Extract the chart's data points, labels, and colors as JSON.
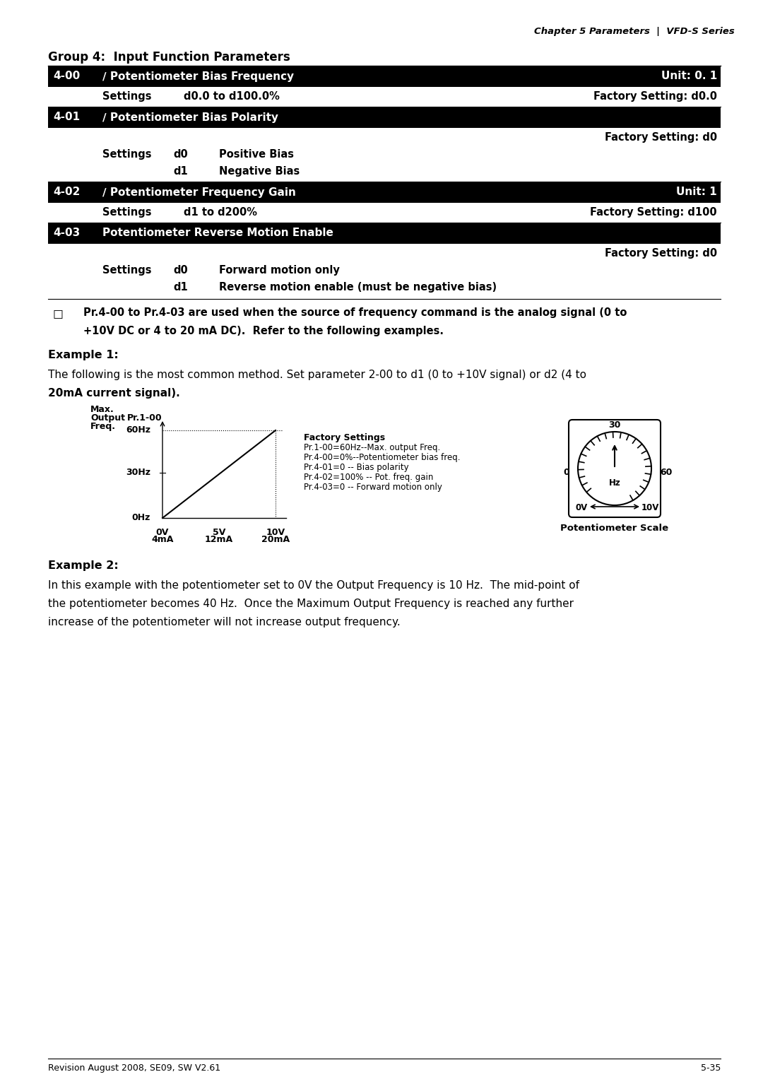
{
  "header_right": "Chapter 5 Parameters  |  VFD-S Series",
  "group_title": "Group 4:  Input Function Parameters",
  "params": [
    {
      "id": "4-00",
      "name": "∕ Potentiometer Bias Frequency",
      "unit": "Unit: 0. 1",
      "settings_label": "Settings",
      "settings_range": "d0.0 to d100.0%",
      "factory": "Factory Setting: d0.0"
    },
    {
      "id": "4-01",
      "name": "∕ Potentiometer Bias Polarity",
      "unit": "",
      "factory": "Factory Setting: d0",
      "settings": [
        {
          "code": "d0",
          "desc": "Positive Bias"
        },
        {
          "code": "d1",
          "desc": "Negative Bias"
        }
      ]
    },
    {
      "id": "4-02",
      "name": "∕ Potentiometer Frequency Gain",
      "unit": "Unit: 1",
      "settings_label": "Settings",
      "settings_range": "d1 to d200%",
      "factory": "Factory Setting: d100"
    },
    {
      "id": "4-03",
      "name": "Potentiometer Reverse Motion Enable",
      "unit": "",
      "factory": "Factory Setting: d0",
      "settings": [
        {
          "code": "d0",
          "desc": "Forward motion only"
        },
        {
          "code": "d1",
          "desc": "Reverse motion enable (must be negative bias)"
        }
      ]
    }
  ],
  "note_icon": "☐",
  "note_text": "Pr.4-00 to Pr.4-03 are used when the source of frequency command is the analog signal (0 to\n+10V DC or 4 to 20 mA DC).  Refer to the following examples.",
  "example1_title": "Example 1:",
  "example1_text1": "The following is the most common method. Set parameter 2-00 to d1 (0 to +10V signal) or d2 (4 to",
  "example1_text2": "20mA current signal).",
  "graph_ylabel_line1": "Max.",
  "graph_ylabel_line2": "Output",
  "graph_ylabel_pr": "Pr.1-00",
  "graph_ylabel_line3": "Freq.",
  "graph_y_labels": [
    "60Hz",
    "30Hz",
    "0Hz"
  ],
  "graph_x_labels": [
    "0V",
    "5V",
    "10V"
  ],
  "graph_x_labels2": [
    "4mA",
    "12mA",
    "20mA"
  ],
  "factory_settings_title": "Factory Settings",
  "factory_settings_lines": [
    "Pr.1-00=60Hz--Max. output Freq.",
    "Pr.4-00=0%--Potentiometer bias freq.",
    "Pr.4-01=0 -- Bias polarity",
    "Pr.4-02=100% -- Pot. freq. gain",
    "Pr.4-03=0 -- Forward motion only"
  ],
  "pot_scale_label": "Potentiometer Scale",
  "pot_labels": [
    "30",
    "0",
    "Hz",
    "60",
    "0V",
    "10V"
  ],
  "example2_title": "Example 2:",
  "example2_text1": "In this example with the potentiometer set to 0V the Output Frequency is 10 Hz.  The mid-point of",
  "example2_text2": "the potentiometer becomes 40 Hz.  Once the Maximum Output Frequency is reached any further",
  "example2_text3": "increase of the potentiometer will not increase output frequency.",
  "footer_left": "Revision August 2008, SE09, SW V2.61",
  "footer_right": "5-35",
  "bg_color": "#ffffff",
  "header_bg": "#000000",
  "header_fg": "#ffffff",
  "body_fg": "#000000"
}
